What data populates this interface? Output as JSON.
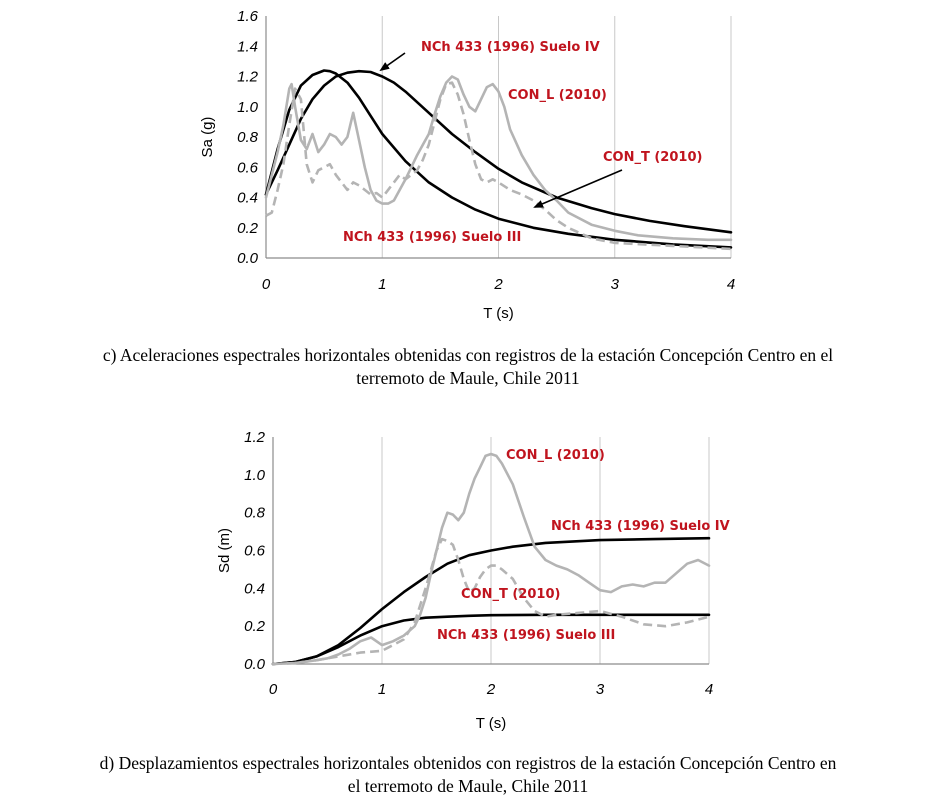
{
  "colors": {
    "nch": "#000000",
    "con": "#b4b4b4",
    "annotation": "#c0141e",
    "grid": "#c8c8c8",
    "axis": "#8c8c8c"
  },
  "chart_data": [
    {
      "type": "line",
      "xlabel": "T (s)",
      "ylabel": "Sa (g)",
      "xlim": [
        0,
        4
      ],
      "ylim": [
        0,
        1.6
      ],
      "xticks": [
        "0",
        "1",
        "2",
        "3",
        "4"
      ],
      "yticks": [
        "0.0",
        "0.2",
        "0.4",
        "0.6",
        "0.8",
        "1.0",
        "1.2",
        "1.4",
        "1.6"
      ],
      "grid": "vertical",
      "caption": [
        "c) Aceleraciones espectrales horizontales obtenidas con registros de la estación Concepción Centro en el",
        "terremoto de Maule, Chile 2011"
      ],
      "series": [
        {
          "name": "NCh 433 (1996) Suelo IV",
          "style": "nch",
          "x": [
            0,
            0.1,
            0.2,
            0.3,
            0.4,
            0.5,
            0.6,
            0.7,
            0.8,
            0.9,
            1.0,
            1.1,
            1.2,
            1.4,
            1.6,
            1.8,
            2.0,
            2.2,
            2.5,
            2.8,
            3.0,
            3.3,
            3.6,
            4.0
          ],
          "y": [
            0.42,
            0.58,
            0.75,
            0.92,
            1.05,
            1.14,
            1.2,
            1.225,
            1.235,
            1.23,
            1.2,
            1.16,
            1.1,
            0.96,
            0.82,
            0.7,
            0.59,
            0.5,
            0.4,
            0.33,
            0.29,
            0.245,
            0.21,
            0.17
          ]
        },
        {
          "name": "NCh 433 (1996) Suelo III",
          "style": "nch",
          "x": [
            0,
            0.1,
            0.2,
            0.3,
            0.4,
            0.5,
            0.55,
            0.6,
            0.7,
            0.8,
            0.9,
            1.0,
            1.2,
            1.4,
            1.6,
            1.8,
            2.0,
            2.3,
            2.6,
            3.0,
            3.5,
            4.0
          ],
          "y": [
            0.42,
            0.72,
            0.98,
            1.14,
            1.21,
            1.24,
            1.235,
            1.22,
            1.16,
            1.06,
            0.94,
            0.82,
            0.64,
            0.5,
            0.4,
            0.32,
            0.26,
            0.2,
            0.16,
            0.12,
            0.09,
            0.07
          ]
        },
        {
          "name": "CON_L (2010)",
          "style": "con-solid",
          "x": [
            0,
            0.05,
            0.1,
            0.15,
            0.2,
            0.22,
            0.25,
            0.3,
            0.35,
            0.4,
            0.45,
            0.5,
            0.55,
            0.6,
            0.65,
            0.7,
            0.75,
            0.8,
            0.85,
            0.9,
            0.95,
            1.0,
            1.05,
            1.1,
            1.15,
            1.2,
            1.25,
            1.3,
            1.35,
            1.4,
            1.45,
            1.5,
            1.55,
            1.6,
            1.65,
            1.7,
            1.75,
            1.8,
            1.85,
            1.9,
            1.95,
            2.0,
            2.05,
            2.1,
            2.2,
            2.3,
            2.4,
            2.5,
            2.6,
            2.8,
            3.0,
            3.2,
            3.5,
            3.8,
            4.0
          ],
          "y": [
            0.4,
            0.55,
            0.7,
            0.88,
            1.12,
            1.15,
            1.0,
            0.78,
            0.72,
            0.82,
            0.7,
            0.75,
            0.82,
            0.8,
            0.75,
            0.8,
            0.96,
            0.78,
            0.6,
            0.45,
            0.38,
            0.36,
            0.36,
            0.38,
            0.45,
            0.52,
            0.6,
            0.68,
            0.75,
            0.82,
            0.95,
            1.07,
            1.16,
            1.2,
            1.18,
            1.08,
            1.0,
            0.97,
            1.05,
            1.13,
            1.15,
            1.1,
            1.0,
            0.85,
            0.68,
            0.55,
            0.45,
            0.38,
            0.3,
            0.22,
            0.18,
            0.15,
            0.13,
            0.12,
            0.12
          ]
        },
        {
          "name": "CON_T (2010)",
          "style": "con-dashed",
          "x": [
            0,
            0.05,
            0.1,
            0.15,
            0.2,
            0.25,
            0.3,
            0.35,
            0.4,
            0.45,
            0.5,
            0.55,
            0.6,
            0.65,
            0.7,
            0.75,
            0.8,
            0.85,
            0.9,
            0.95,
            1.0,
            1.05,
            1.1,
            1.15,
            1.2,
            1.25,
            1.3,
            1.35,
            1.4,
            1.45,
            1.5,
            1.55,
            1.6,
            1.65,
            1.7,
            1.75,
            1.8,
            1.85,
            1.9,
            1.95,
            2.0,
            2.1,
            2.2,
            2.3,
            2.4,
            2.5,
            2.6,
            2.8,
            3.0,
            3.5,
            4.0
          ],
          "y": [
            0.28,
            0.3,
            0.45,
            0.62,
            0.88,
            1.12,
            1.05,
            0.62,
            0.5,
            0.58,
            0.6,
            0.62,
            0.55,
            0.5,
            0.45,
            0.5,
            0.48,
            0.45,
            0.42,
            0.43,
            0.4,
            0.45,
            0.5,
            0.55,
            0.52,
            0.55,
            0.58,
            0.65,
            0.75,
            0.9,
            1.05,
            1.15,
            1.16,
            1.08,
            0.95,
            0.78,
            0.62,
            0.52,
            0.5,
            0.52,
            0.5,
            0.45,
            0.42,
            0.38,
            0.32,
            0.25,
            0.2,
            0.13,
            0.1,
            0.08,
            0.06
          ]
        }
      ],
      "annotations": [
        "NCh 433 (1996) Suelo IV",
        "CON_L (2010)",
        "CON_T (2010)",
        "NCh 433 (1996) Suelo III"
      ]
    },
    {
      "type": "line",
      "xlabel": "T (s)",
      "ylabel": "Sd (m)",
      "xlim": [
        0,
        4
      ],
      "ylim": [
        0,
        1.2
      ],
      "xticks": [
        "0",
        "1",
        "2",
        "3",
        "4"
      ],
      "yticks": [
        "0.0",
        "0.2",
        "0.4",
        "0.6",
        "0.8",
        "1.0",
        "1.2"
      ],
      "grid": "vertical",
      "caption": [
        "d) Desplazamientos espectrales horizontales obtenidos con registros de la estación Concepción Centro en",
        "el terremoto de Maule, Chile 2011"
      ],
      "series": [
        {
          "name": "NCh 433 (1996) Suelo IV",
          "style": "nch",
          "x": [
            0,
            0.2,
            0.4,
            0.6,
            0.8,
            1.0,
            1.2,
            1.4,
            1.6,
            1.8,
            2.0,
            2.2,
            2.5,
            3.0,
            3.5,
            4.0
          ],
          "y": [
            0,
            0.01,
            0.04,
            0.1,
            0.19,
            0.29,
            0.38,
            0.46,
            0.53,
            0.575,
            0.6,
            0.62,
            0.64,
            0.655,
            0.66,
            0.665
          ]
        },
        {
          "name": "NCh 433 (1996) Suelo III",
          "style": "nch",
          "x": [
            0,
            0.2,
            0.4,
            0.6,
            0.8,
            1.0,
            1.2,
            1.4,
            1.6,
            1.8,
            2.0,
            2.5,
            3.0,
            3.5,
            4.0
          ],
          "y": [
            0,
            0.01,
            0.04,
            0.09,
            0.15,
            0.2,
            0.23,
            0.245,
            0.25,
            0.255,
            0.258,
            0.26,
            0.26,
            0.26,
            0.26
          ]
        },
        {
          "name": "CON_L (2010)",
          "style": "con-solid",
          "x": [
            0,
            0.2,
            0.4,
            0.5,
            0.6,
            0.7,
            0.8,
            0.9,
            1.0,
            1.1,
            1.2,
            1.3,
            1.35,
            1.4,
            1.45,
            1.5,
            1.55,
            1.6,
            1.65,
            1.7,
            1.75,
            1.8,
            1.85,
            1.9,
            1.95,
            2.0,
            2.05,
            2.1,
            2.2,
            2.3,
            2.4,
            2.5,
            2.6,
            2.7,
            2.8,
            2.9,
            3.0,
            3.1,
            3.2,
            3.3,
            3.4,
            3.5,
            3.6,
            3.7,
            3.8,
            3.9,
            4.0
          ],
          "y": [
            0,
            0.005,
            0.02,
            0.03,
            0.05,
            0.08,
            0.12,
            0.14,
            0.1,
            0.12,
            0.15,
            0.2,
            0.26,
            0.35,
            0.48,
            0.6,
            0.72,
            0.8,
            0.79,
            0.76,
            0.8,
            0.9,
            0.98,
            1.04,
            1.1,
            1.11,
            1.1,
            1.06,
            0.95,
            0.78,
            0.62,
            0.55,
            0.52,
            0.5,
            0.47,
            0.43,
            0.39,
            0.38,
            0.41,
            0.42,
            0.41,
            0.43,
            0.43,
            0.48,
            0.53,
            0.55,
            0.52
          ]
        },
        {
          "name": "CON_T (2010)",
          "style": "con-dashed",
          "x": [
            0,
            0.2,
            0.4,
            0.6,
            0.8,
            1.0,
            1.1,
            1.2,
            1.3,
            1.4,
            1.5,
            1.55,
            1.6,
            1.65,
            1.7,
            1.75,
            1.8,
            1.85,
            1.9,
            1.95,
            2.0,
            2.05,
            2.1,
            2.2,
            2.3,
            2.4,
            2.5,
            2.6,
            2.8,
            3.0,
            3.2,
            3.4,
            3.6,
            3.8,
            4.0
          ],
          "y": [
            0,
            0.005,
            0.02,
            0.04,
            0.06,
            0.07,
            0.1,
            0.13,
            0.22,
            0.4,
            0.6,
            0.66,
            0.65,
            0.63,
            0.55,
            0.45,
            0.38,
            0.4,
            0.46,
            0.5,
            0.52,
            0.52,
            0.5,
            0.45,
            0.35,
            0.28,
            0.25,
            0.26,
            0.27,
            0.28,
            0.25,
            0.21,
            0.2,
            0.22,
            0.25
          ]
        }
      ],
      "annotations": [
        "CON_L (2010)",
        "NCh 433 (1996) Suelo IV",
        "CON_T (2010)",
        "NCh 433 (1996) Suelo III"
      ]
    }
  ]
}
